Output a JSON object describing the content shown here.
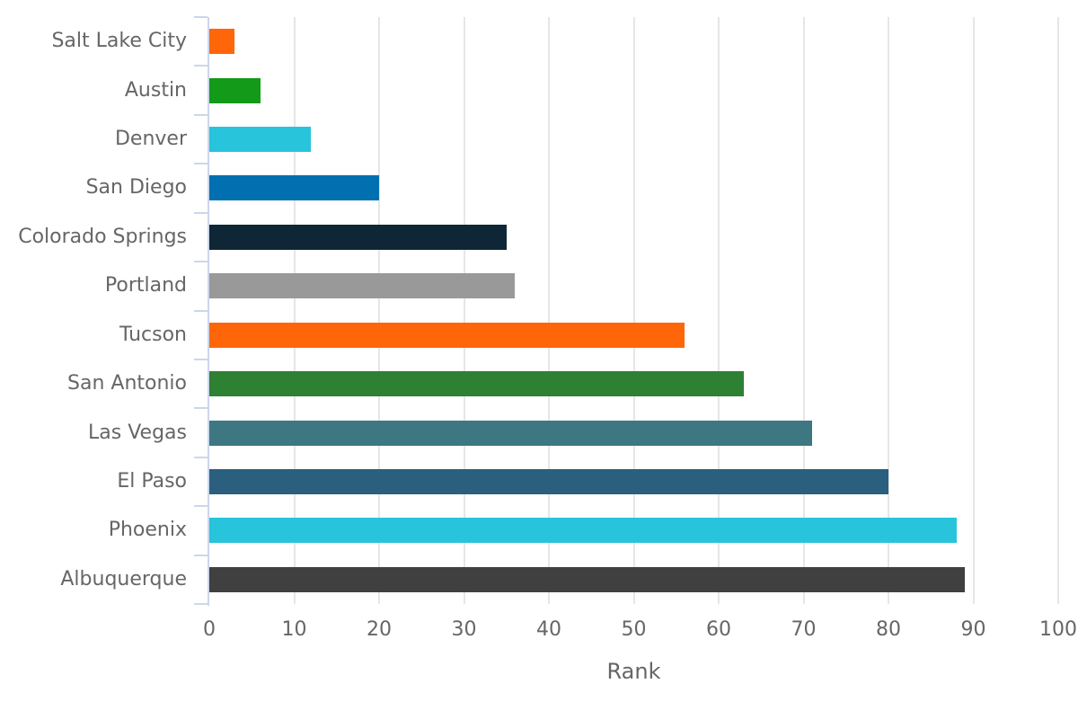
{
  "chart_data": {
    "type": "bar",
    "orientation": "horizontal",
    "title": "",
    "xlabel": "Rank",
    "ylabel": "",
    "categories": [
      "Salt Lake City",
      "Austin",
      "Denver",
      "San Diego",
      "Colorado Springs",
      "Portland",
      "Tucson",
      "San Antonio",
      "Las Vegas",
      "El Paso",
      "Phoenix",
      "Albuquerque"
    ],
    "values": [
      3,
      6,
      12,
      20,
      35,
      36,
      56,
      63,
      71,
      80,
      88,
      89
    ],
    "bar_colors": [
      "#FF6609",
      "#129A18",
      "#27C4DC",
      "#0070B0",
      "#0F2636",
      "#999999",
      "#FF6609",
      "#2E8033",
      "#3D7782",
      "#2A5F7E",
      "#27C4DC",
      "#404040"
    ],
    "xlim": [
      0,
      100
    ],
    "xticks": [
      0,
      10,
      20,
      30,
      40,
      50,
      60,
      70,
      80,
      90,
      100
    ],
    "grid": true,
    "legend": false,
    "colors": {
      "axis_line": "#CCD6EB",
      "gridline": "#E6E6E6",
      "label_text": "#666666",
      "background": "#FFFFFF"
    }
  }
}
